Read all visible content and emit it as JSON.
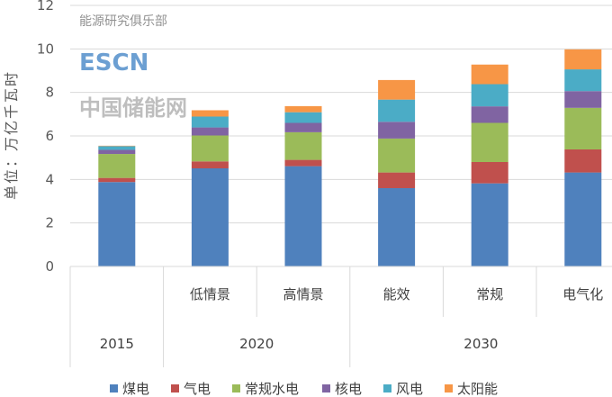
{
  "chart_data": {
    "type": "bar",
    "stacked": true,
    "title": "",
    "ylabel": "单位：万亿千瓦时",
    "xlabel": "",
    "ylim": [
      0,
      12
    ],
    "yticks": [
      0,
      2,
      4,
      6,
      8,
      10,
      12
    ],
    "grid": true,
    "legend_position": "bottom",
    "categories": [
      "",
      "低情景",
      "高情景",
      "能效",
      "常规",
      "电气化"
    ],
    "groups": [
      {
        "label": "2015",
        "span": 1
      },
      {
        "label": "2020",
        "span": 2
      },
      {
        "label": "2030",
        "span": 3
      }
    ],
    "series": [
      {
        "name": "煤电",
        "color": "#4f81bd",
        "values": [
          3.88,
          4.51,
          4.61,
          3.6,
          3.82,
          4.32
        ]
      },
      {
        "name": "气电",
        "color": "#c0504d",
        "values": [
          0.19,
          0.32,
          0.29,
          0.72,
          0.98,
          1.06
        ]
      },
      {
        "name": "常规水电",
        "color": "#9bbb59",
        "values": [
          1.1,
          1.19,
          1.27,
          1.56,
          1.8,
          1.91
        ]
      },
      {
        "name": "核电",
        "color": "#8064a2",
        "values": [
          0.19,
          0.37,
          0.43,
          0.77,
          0.76,
          0.77
        ]
      },
      {
        "name": "风电",
        "color": "#4bacc6",
        "values": [
          0.17,
          0.5,
          0.49,
          1.02,
          1.02,
          1.0
        ]
      },
      {
        "name": "太阳能",
        "color": "#f79646",
        "values": [
          0.02,
          0.29,
          0.28,
          0.9,
          0.9,
          0.92
        ]
      }
    ]
  },
  "watermark": {
    "brand": "ESCN",
    "site": "中国储能网",
    "account": "能源研究俱乐部"
  }
}
